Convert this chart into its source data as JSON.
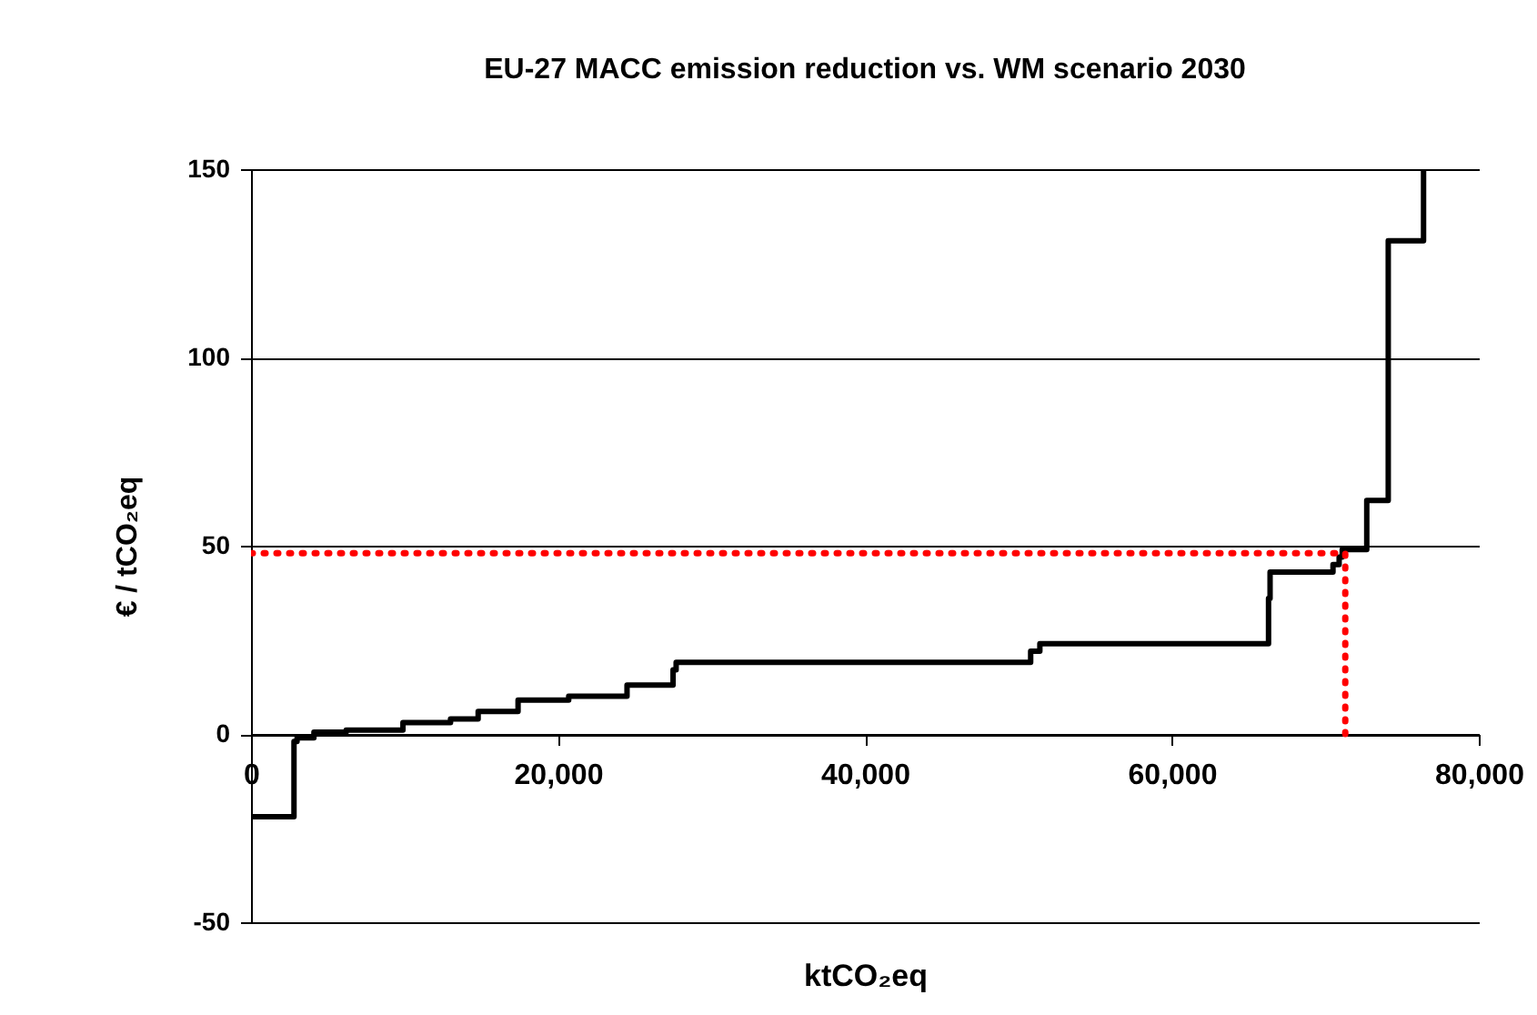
{
  "chart_data": {
    "type": "step",
    "title": "EU-27 MACC emission reduction vs. WM scenario 2030",
    "xlabel": "ktCO₂eq",
    "ylabel": "€ / tCO₂eq",
    "xlim": [
      0,
      80000
    ],
    "ylim": [
      -50,
      150
    ],
    "xticks": [
      {
        "value": 0,
        "label": "0"
      },
      {
        "value": 20000,
        "label": "20,000"
      },
      {
        "value": 40000,
        "label": "40,000"
      },
      {
        "value": 60000,
        "label": "60,000"
      },
      {
        "value": 80000,
        "label": "80,000"
      }
    ],
    "yticks": [
      -50,
      0,
      50,
      100,
      150
    ],
    "grid": "y",
    "series": [
      {
        "type": "step",
        "color": "#000000",
        "line_style": "solid",
        "x": [
          0,
          2800,
          3000,
          4100,
          6200,
          9900,
          13000,
          14800,
          17400,
          20700,
          24500,
          27500,
          27700,
          50800,
          51400,
          66300,
          66400,
          70500,
          70900,
          71100,
          72700,
          74100,
          76400
        ],
        "values": [
          -22,
          -2,
          -1,
          0.5,
          1,
          3,
          4,
          6,
          9,
          10,
          13,
          17,
          19,
          22,
          24,
          36,
          43,
          45,
          47,
          49,
          62,
          131,
          150
        ]
      },
      {
        "type": "line",
        "color": "#ff0000",
        "line_style": "dotted",
        "x": [
          0,
          71300,
          71300
        ],
        "values": [
          48,
          48,
          0
        ]
      }
    ]
  }
}
